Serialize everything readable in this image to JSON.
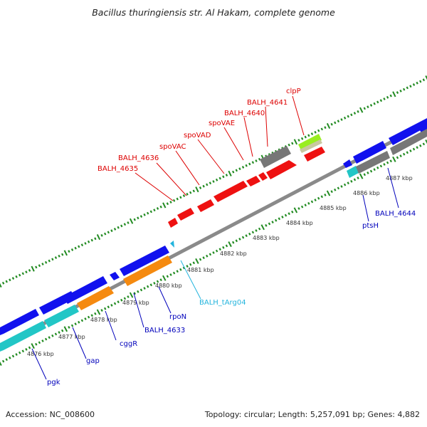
{
  "title": "Bacillus thuringiensis str. Al Hakam, complete genome",
  "footer": {
    "accession": "Accession: NC_008600",
    "topology": "Topology: circular; Length: 5,257,091 bp; Genes: 4,882"
  },
  "colors": {
    "red_gene": "#ee1111",
    "blue_gene": "#1111ee",
    "cyan_gene": "#22c6c6",
    "orange_gene": "#f58a10",
    "gray_gene": "#777777",
    "lime_gene": "#99ee22",
    "red_label": "#dd0000",
    "blue_label": "#0000bb",
    "cyan_label": "#22b4dd",
    "tick_green": "#228b22"
  },
  "ticks": [
    "4876 kbp",
    "4877 kbp",
    "4878 kbp",
    "4879 kbp",
    "4880 kbp",
    "4881 kbp",
    "4882 kbp",
    "4883 kbp",
    "4884 kbp",
    "4885 kbp",
    "4886 kbp",
    "4887 kbp"
  ],
  "labels": {
    "BALH_4635": "BALH_4635",
    "BALH_4636": "BALH_4636",
    "spoVAC": "spoVAC",
    "spoVAD": "spoVAD",
    "spoVAE": "spoVAE",
    "BALH_4640": "BALH_4640",
    "BALH_4641": "BALH_4641",
    "clpP": "clpP",
    "BALH_tArg04": "BALH_tArg04",
    "rpoN": "rpoN",
    "BALH_4633": "BALH_4633",
    "cggR": "cggR",
    "gap": "gap",
    "pgk": "pgk",
    "ptsH": "ptsH",
    "BALH_4644": "BALH_4644"
  }
}
